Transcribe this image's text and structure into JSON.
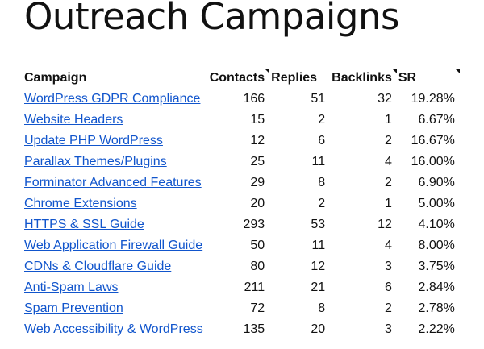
{
  "page": {
    "title": "Outreach Campaigns"
  },
  "table": {
    "headers": {
      "campaign": "Campaign",
      "contacts": "Contacts",
      "replies": "Replies",
      "backlinks": "Backlinks",
      "sr": "SR"
    },
    "rows": [
      {
        "campaign": "WordPress GDPR Compliance",
        "contacts": "166",
        "replies": "51",
        "backlinks": "32",
        "sr": "19.28%"
      },
      {
        "campaign": "Website Headers",
        "contacts": "15",
        "replies": "2",
        "backlinks": "1",
        "sr": "6.67%"
      },
      {
        "campaign": "Update PHP WordPress",
        "contacts": "12",
        "replies": "6",
        "backlinks": "2",
        "sr": "16.67%"
      },
      {
        "campaign": "Parallax Themes/Plugins",
        "contacts": "25",
        "replies": "11",
        "backlinks": "4",
        "sr": "16.00%"
      },
      {
        "campaign": "Forminator Advanced Features",
        "contacts": "29",
        "replies": "8",
        "backlinks": "2",
        "sr": "6.90%"
      },
      {
        "campaign": "Chrome Extensions",
        "contacts": "20",
        "replies": "2",
        "backlinks": "1",
        "sr": "5.00%"
      },
      {
        "campaign": "HTTPS & SSL Guide",
        "contacts": "293",
        "replies": "53",
        "backlinks": "12",
        "sr": "4.10%"
      },
      {
        "campaign": "Web Application Firewall Guide",
        "contacts": "50",
        "replies": "11",
        "backlinks": "4",
        "sr": "8.00%"
      },
      {
        "campaign": "CDNs & Cloudflare Guide",
        "contacts": "80",
        "replies": "12",
        "backlinks": "3",
        "sr": "3.75%"
      },
      {
        "campaign": "Anti-Spam Laws",
        "contacts": "211",
        "replies": "21",
        "backlinks": "6",
        "sr": "2.84%"
      },
      {
        "campaign": "Spam Prevention",
        "contacts": "72",
        "replies": "8",
        "backlinks": "2",
        "sr": "2.78%"
      },
      {
        "campaign": "Web Accessibility & WordPress",
        "contacts": "135",
        "replies": "20",
        "backlinks": "3",
        "sr": "2.22%"
      }
    ]
  },
  "colors": {
    "link": "#1155cc",
    "text": "#111111",
    "background": "#ffffff"
  }
}
